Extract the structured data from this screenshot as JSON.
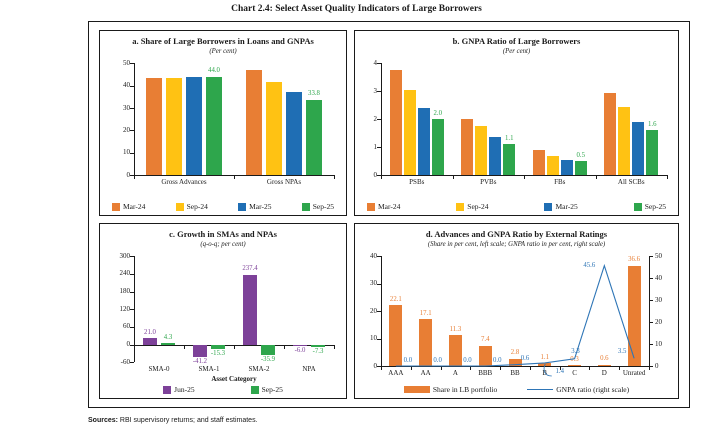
{
  "page_title": "Chart 2.4: Select Asset Quality Indicators of Large Borrowers",
  "sources": {
    "label": "Sources:",
    "text": " RBI supervisory returns; and staff estimates."
  },
  "colors": {
    "mar24": "#E87E34",
    "sep24": "#FFC213",
    "mar25": "#1F6EB4",
    "sep25": "#2EA64C",
    "jun25": "#7D4199",
    "line": "#2E75B6",
    "bar": "#E87E34"
  },
  "chart_data": [
    {
      "id": "a",
      "type": "bar",
      "title": "a. Share of Large Borrowers in Loans and GNPAs",
      "subtitle": "(Per cent)",
      "categories": [
        "Gross Advances",
        "Gross NPAs"
      ],
      "ylim": [
        0,
        50
      ],
      "yticks": [
        0,
        10,
        20,
        30,
        40,
        50
      ],
      "series": [
        {
          "name": "Mar-24",
          "color_key": "mar24",
          "values": [
            43.4,
            46.8
          ]
        },
        {
          "name": "Sep-24",
          "color_key": "sep24",
          "values": [
            43.2,
            41.5
          ]
        },
        {
          "name": "Mar-25",
          "color_key": "mar25",
          "values": [
            43.8,
            37.3
          ]
        },
        {
          "name": "Sep-25",
          "color_key": "sep25",
          "values": [
            44.0,
            33.8
          ],
          "labels": [
            "44.0",
            "33.8"
          ]
        }
      ]
    },
    {
      "id": "b",
      "type": "bar",
      "title": "b. GNPA Ratio of Large Borrowers",
      "subtitle": "(Per cent)",
      "categories": [
        "PSBs",
        "PVBs",
        "FBs",
        "All SCBs"
      ],
      "ylim": [
        0,
        4
      ],
      "yticks": [
        0,
        1,
        2,
        3,
        4
      ],
      "series": [
        {
          "name": "Mar-24",
          "color_key": "mar24",
          "values": [
            3.75,
            2.0,
            0.9,
            2.95
          ]
        },
        {
          "name": "Sep-24",
          "color_key": "sep24",
          "values": [
            3.05,
            1.75,
            0.67,
            2.45
          ]
        },
        {
          "name": "Mar-25",
          "color_key": "mar25",
          "values": [
            2.4,
            1.35,
            0.55,
            1.9
          ]
        },
        {
          "name": "Sep-25",
          "color_key": "sep25",
          "values": [
            2.0,
            1.1,
            0.5,
            1.6
          ],
          "labels": [
            "2.0",
            "1.1",
            "0.5",
            "1.6"
          ]
        }
      ]
    },
    {
      "id": "c",
      "type": "bar",
      "title": "c. Growth in SMAs and NPAs",
      "subtitle": "(q-o-q; per cent)",
      "categories": [
        "SMA-0",
        "SMA-1",
        "SMA-2",
        "NPA"
      ],
      "xlabel": "Asset Category",
      "ylim": [
        -60,
        300
      ],
      "yticks": [
        -60,
        0,
        60,
        120,
        180,
        240,
        300
      ],
      "series": [
        {
          "name": "Jun-25",
          "color_key": "jun25",
          "values": [
            21.0,
            -41.2,
            237.4,
            -6.0
          ],
          "labels": [
            "21.0",
            "-41.2",
            "237.4",
            "-6.0"
          ]
        },
        {
          "name": "Sep-25",
          "color_key": "sep25",
          "values": [
            4.3,
            -15.3,
            -35.9,
            -7.3
          ],
          "labels": [
            "4.3",
            "-15.3",
            "-35.9",
            "-7.3"
          ]
        }
      ]
    },
    {
      "id": "d",
      "type": "bar+line",
      "title": "d. Advances and GNPA Ratio by External Ratings",
      "subtitle": "(Share in per cent, left scale; GNPA ratio in per cent, right scale)",
      "categories": [
        "AAA",
        "AA",
        "A",
        "BBB",
        "BB",
        "B",
        "C",
        "D",
        "Unrated"
      ],
      "ylim_left": [
        0,
        40
      ],
      "yticks_left": [
        0,
        10,
        20,
        30,
        40
      ],
      "ylim_right": [
        0,
        50
      ],
      "yticks_right": [
        0,
        10,
        20,
        30,
        40,
        50
      ],
      "bars": {
        "name": "Share in LB portfolio",
        "values": [
          22.1,
          17.1,
          11.3,
          7.4,
          2.8,
          1.1,
          0.3,
          0.6,
          36.6
        ],
        "labels": [
          "22.1",
          "17.1",
          "11.3",
          "7.4",
          "2.8",
          "1.1",
          "0.3",
          "0.6",
          "36.6"
        ]
      },
      "line": {
        "name": "GNPA ratio (right scale)",
        "values": [
          0.0,
          0.0,
          0.0,
          0.0,
          0.6,
          1.4,
          3.3,
          45.6,
          3.5
        ],
        "labels": [
          "0.0",
          "0.0",
          "0.0",
          "0.0",
          "0.6",
          "1.4",
          "3.3",
          "45.6",
          "3.5"
        ]
      }
    }
  ]
}
